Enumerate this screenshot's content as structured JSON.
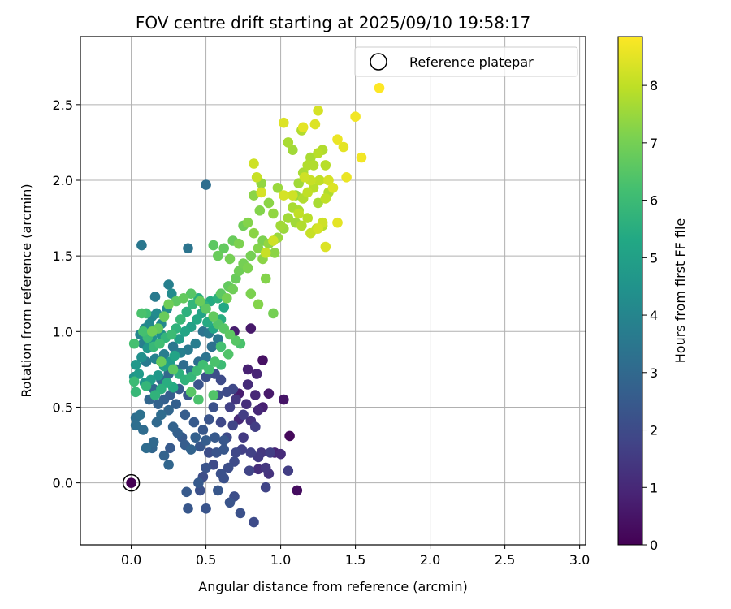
{
  "chart_data": {
    "type": "scatter",
    "title": "FOV centre drift starting at 2025/09/10 19:58:17",
    "xlabel": "Angular distance from reference (arcmin)",
    "ylabel": "Rotation from reference (arcmin)",
    "xlim": [
      -0.34,
      3.04
    ],
    "ylim": [
      -0.41,
      2.95
    ],
    "xticks": [
      0.0,
      0.5,
      1.0,
      1.5,
      2.0,
      2.5,
      3.0
    ],
    "xtick_labels": [
      "0.0",
      "0.5",
      "1.0",
      "1.5",
      "2.0",
      "2.5",
      "3.0"
    ],
    "yticks": [
      0.0,
      0.5,
      1.0,
      1.5,
      2.0,
      2.5
    ],
    "ytick_labels": [
      "0.0",
      "0.5",
      "1.0",
      "1.5",
      "2.0",
      "2.5"
    ],
    "grid": true,
    "colormap": "viridis",
    "colorbar": {
      "label": "Hours from first FF file",
      "range": [
        0,
        8.85
      ],
      "ticks": [
        0,
        1,
        2,
        3,
        4,
        5,
        6,
        7,
        8
      ],
      "tick_labels": [
        "0",
        "1",
        "2",
        "3",
        "4",
        "5",
        "6",
        "7",
        "8"
      ]
    },
    "legend": {
      "placement": "top-right",
      "entries": [
        {
          "label": "Reference platepar",
          "marker": "open-circle"
        }
      ]
    },
    "reference_point": {
      "x": 0.0,
      "y": 0.0,
      "hours": 0.0
    },
    "points": [
      [
        1.06,
        0.31,
        0.2
      ],
      [
        1.11,
        -0.05,
        0.3
      ],
      [
        0.88,
        0.81,
        0.4
      ],
      [
        1.02,
        0.55,
        0.5
      ],
      [
        0.92,
        0.59,
        0.6
      ],
      [
        0.72,
        0.59,
        0.7
      ],
      [
        0.8,
        1.02,
        0.6
      ],
      [
        0.69,
        1.0,
        0.7
      ],
      [
        0.88,
        0.5,
        0.8
      ],
      [
        0.84,
        0.72,
        0.9
      ],
      [
        0.78,
        0.75,
        0.8
      ],
      [
        0.85,
        0.48,
        1.0
      ],
      [
        0.96,
        0.2,
        0.9
      ],
      [
        1.0,
        0.19,
        1.1
      ],
      [
        0.78,
        0.65,
        1.1
      ],
      [
        0.83,
        0.58,
        1.0
      ],
      [
        0.77,
        0.52,
        1.2
      ],
      [
        0.72,
        0.42,
        1.0
      ],
      [
        0.8,
        0.41,
        1.3
      ],
      [
        0.92,
        0.06,
        1.3
      ],
      [
        0.85,
        0.09,
        1.2
      ],
      [
        0.9,
        0.1,
        1.4
      ],
      [
        0.87,
        0.2,
        1.4
      ],
      [
        0.93,
        0.2,
        1.6
      ],
      [
        0.85,
        0.17,
        1.5
      ],
      [
        0.8,
        0.2,
        1.7
      ],
      [
        0.79,
        0.08,
        1.8
      ],
      [
        1.05,
        0.08,
        1.6
      ],
      [
        0.9,
        -0.03,
        1.8
      ],
      [
        0.83,
        0.37,
        1.6
      ],
      [
        0.75,
        0.3,
        1.5
      ],
      [
        0.74,
        0.22,
        1.7
      ],
      [
        0.75,
        0.45,
        1.6
      ],
      [
        0.7,
        0.55,
        1.4
      ],
      [
        0.66,
        0.5,
        1.7
      ],
      [
        0.6,
        0.4,
        1.9
      ],
      [
        0.68,
        0.38,
        1.8
      ],
      [
        0.64,
        0.3,
        2.0
      ],
      [
        0.7,
        0.2,
        1.9
      ],
      [
        0.69,
        0.14,
        2.0
      ],
      [
        0.65,
        0.1,
        2.1
      ],
      [
        0.6,
        0.06,
        2.2
      ],
      [
        0.55,
        0.12,
        2.0
      ],
      [
        0.52,
        0.2,
        2.1
      ],
      [
        0.5,
        0.1,
        2.3
      ],
      [
        0.48,
        0.04,
        2.1
      ],
      [
        0.46,
        -0.05,
        2.2
      ],
      [
        0.5,
        -0.17,
        2.3
      ],
      [
        0.38,
        -0.17,
        2.4
      ],
      [
        0.37,
        -0.06,
        2.5
      ],
      [
        0.45,
        0.0,
        2.5
      ],
      [
        0.58,
        -0.05,
        2.4
      ],
      [
        0.66,
        -0.13,
        2.3
      ],
      [
        0.69,
        -0.09,
        2.1
      ],
      [
        0.73,
        -0.2,
        2.2
      ],
      [
        0.82,
        -0.26,
        2.0
      ],
      [
        0.62,
        0.03,
        2.2
      ],
      [
        0.57,
        0.2,
        2.3
      ],
      [
        0.62,
        0.22,
        2.4
      ],
      [
        0.62,
        0.28,
        2.4
      ],
      [
        0.56,
        0.3,
        2.5
      ],
      [
        0.5,
        0.28,
        2.6
      ],
      [
        0.46,
        0.24,
        2.4
      ],
      [
        0.43,
        0.3,
        2.7
      ],
      [
        0.4,
        0.22,
        2.8
      ],
      [
        0.36,
        0.25,
        2.6
      ],
      [
        0.34,
        0.3,
        2.5
      ],
      [
        0.31,
        0.33,
        2.7
      ],
      [
        0.28,
        0.37,
        2.8
      ],
      [
        0.26,
        0.23,
        2.5
      ],
      [
        0.22,
        0.18,
        2.8
      ],
      [
        0.25,
        0.12,
        2.9
      ],
      [
        0.15,
        0.27,
        3.0
      ],
      [
        0.14,
        0.23,
        2.9
      ],
      [
        0.1,
        0.23,
        3.1
      ],
      [
        0.03,
        0.38,
        3.2
      ],
      [
        0.08,
        0.35,
        3.1
      ],
      [
        0.06,
        0.45,
        3.3
      ],
      [
        0.03,
        0.43,
        3.2
      ],
      [
        0.17,
        0.4,
        3.0
      ],
      [
        0.2,
        0.45,
        3.1
      ],
      [
        0.25,
        0.48,
        2.9
      ],
      [
        0.3,
        0.52,
        2.7
      ],
      [
        0.36,
        0.45,
        2.6
      ],
      [
        0.42,
        0.4,
        2.5
      ],
      [
        0.48,
        0.35,
        2.4
      ],
      [
        0.52,
        0.42,
        2.3
      ],
      [
        0.55,
        0.5,
        2.2
      ],
      [
        0.58,
        0.58,
        2.1
      ],
      [
        0.64,
        0.6,
        2.0
      ],
      [
        0.68,
        0.62,
        1.9
      ],
      [
        0.6,
        0.68,
        2.0
      ],
      [
        0.56,
        0.72,
        2.1
      ],
      [
        0.5,
        0.7,
        2.2
      ],
      [
        0.45,
        0.65,
        2.3
      ],
      [
        0.38,
        0.58,
        2.4
      ],
      [
        0.32,
        0.62,
        2.5
      ],
      [
        0.26,
        0.58,
        2.6
      ],
      [
        0.22,
        0.55,
        2.7
      ],
      [
        0.18,
        0.52,
        2.8
      ],
      [
        0.12,
        0.55,
        2.9
      ],
      [
        0.15,
        0.62,
        3.0
      ],
      [
        0.2,
        0.68,
        3.1
      ],
      [
        0.25,
        0.72,
        3.0
      ],
      [
        0.3,
        0.75,
        3.2
      ],
      [
        0.35,
        0.78,
        3.1
      ],
      [
        0.4,
        0.74,
        3.3
      ],
      [
        0.45,
        0.8,
        3.2
      ],
      [
        0.5,
        0.83,
        3.4
      ],
      [
        0.54,
        0.9,
        3.3
      ],
      [
        0.58,
        0.95,
        3.5
      ],
      [
        0.52,
        0.99,
        3.6
      ],
      [
        0.48,
        1.0,
        3.4
      ],
      [
        0.43,
        0.92,
        3.7
      ],
      [
        0.38,
        0.88,
        3.6
      ],
      [
        0.33,
        0.86,
        3.8
      ],
      [
        0.28,
        0.9,
        3.5
      ],
      [
        0.22,
        0.85,
        3.7
      ],
      [
        0.16,
        0.82,
        3.9
      ],
      [
        0.1,
        0.8,
        3.6
      ],
      [
        0.08,
        0.92,
        3.8
      ],
      [
        0.06,
        0.98,
        4.0
      ],
      [
        0.09,
        1.02,
        3.9
      ],
      [
        0.12,
        1.05,
        4.1
      ],
      [
        0.14,
        1.1,
        4.0
      ],
      [
        0.17,
        1.12,
        4.2
      ],
      [
        0.2,
        1.05,
        4.1
      ],
      [
        0.24,
        1.15,
        4.3
      ],
      [
        0.27,
        1.25,
        4.2
      ],
      [
        0.25,
        1.31,
        3.8
      ],
      [
        0.16,
        1.23,
        3.6
      ],
      [
        0.07,
        1.57,
        3.5
      ],
      [
        0.38,
        1.55,
        3.4
      ],
      [
        0.5,
        1.97,
        3.2
      ],
      [
        0.2,
        0.98,
        4.4
      ],
      [
        0.14,
        0.95,
        4.5
      ],
      [
        0.11,
        0.89,
        4.6
      ],
      [
        0.07,
        0.83,
        4.4
      ],
      [
        0.03,
        0.78,
        4.7
      ],
      [
        0.02,
        0.7,
        4.5
      ],
      [
        0.05,
        0.72,
        4.8
      ],
      [
        0.09,
        0.66,
        4.6
      ],
      [
        0.13,
        0.68,
        4.9
      ],
      [
        0.18,
        0.71,
        4.7
      ],
      [
        0.22,
        0.77,
        5.0
      ],
      [
        0.26,
        0.8,
        4.8
      ],
      [
        0.29,
        0.84,
        5.1
      ],
      [
        0.32,
        0.95,
        4.9
      ],
      [
        0.36,
        1.0,
        5.2
      ],
      [
        0.4,
        1.03,
        5.0
      ],
      [
        0.44,
        1.08,
        5.3
      ],
      [
        0.47,
        1.12,
        5.1
      ],
      [
        0.51,
        1.06,
        5.4
      ],
      [
        0.55,
        1.02,
        5.2
      ],
      [
        0.6,
        1.08,
        5.5
      ],
      [
        0.62,
        1.16,
        5.3
      ],
      [
        0.58,
        1.22,
        5.6
      ],
      [
        0.53,
        1.2,
        5.4
      ],
      [
        0.49,
        1.17,
        5.7
      ],
      [
        0.45,
        1.22,
        5.5
      ],
      [
        0.41,
        1.18,
        5.8
      ],
      [
        0.37,
        1.13,
        5.6
      ],
      [
        0.33,
        1.08,
        5.9
      ],
      [
        0.3,
        1.02,
        5.7
      ],
      [
        0.27,
        0.98,
        6.0
      ],
      [
        0.23,
        0.96,
        5.8
      ],
      [
        0.19,
        0.92,
        6.1
      ],
      [
        0.15,
        0.9,
        5.9
      ],
      [
        0.11,
        0.96,
        6.0
      ],
      [
        0.08,
        1.0,
        6.2
      ],
      [
        0.1,
        1.12,
        6.1
      ],
      [
        0.07,
        1.12,
        6.3
      ],
      [
        0.02,
        0.92,
        6.2
      ],
      [
        0.02,
        0.67,
        6.0
      ],
      [
        0.03,
        0.6,
        5.9
      ],
      [
        0.1,
        0.64,
        5.8
      ],
      [
        0.16,
        0.58,
        5.7
      ],
      [
        0.2,
        0.62,
        5.6
      ],
      [
        0.24,
        0.66,
        5.5
      ],
      [
        0.28,
        0.63,
        5.4
      ],
      [
        0.32,
        0.72,
        5.6
      ],
      [
        0.36,
        0.68,
        5.7
      ],
      [
        0.4,
        0.7,
        5.8
      ],
      [
        0.44,
        0.74,
        6.0
      ],
      [
        0.48,
        0.78,
        6.1
      ],
      [
        0.52,
        0.75,
        6.2
      ],
      [
        0.56,
        0.8,
        6.3
      ],
      [
        0.6,
        0.78,
        6.0
      ],
      [
        0.65,
        0.85,
        6.4
      ],
      [
        0.7,
        0.94,
        6.5
      ],
      [
        0.73,
        0.92,
        6.3
      ],
      [
        0.6,
        0.9,
        6.2
      ],
      [
        0.66,
        0.98,
        6.6
      ],
      [
        0.62,
        1.02,
        6.5
      ],
      [
        0.58,
        1.05,
        6.4
      ],
      [
        0.55,
        1.1,
        6.7
      ],
      [
        0.5,
        1.15,
        6.6
      ],
      [
        0.46,
        1.2,
        6.8
      ],
      [
        0.4,
        1.25,
        6.5
      ],
      [
        0.35,
        1.22,
        6.7
      ],
      [
        0.3,
        1.2,
        6.6
      ],
      [
        0.25,
        1.18,
        6.9
      ],
      [
        0.22,
        1.1,
        6.8
      ],
      [
        0.18,
        1.02,
        6.7
      ],
      [
        0.14,
        1.0,
        6.9
      ],
      [
        0.2,
        0.8,
        6.8
      ],
      [
        0.28,
        0.75,
        6.6
      ],
      [
        0.4,
        0.6,
        6.5
      ],
      [
        0.45,
        0.55,
        6.3
      ],
      [
        0.55,
        0.58,
        6.4
      ],
      [
        0.6,
        1.25,
        6.6
      ],
      [
        0.65,
        1.3,
        6.7
      ],
      [
        0.7,
        1.35,
        6.8
      ],
      [
        0.68,
        1.28,
        6.9
      ],
      [
        0.64,
        1.22,
        7.0
      ],
      [
        0.72,
        1.4,
        6.9
      ],
      [
        0.75,
        1.45,
        7.0
      ],
      [
        0.78,
        1.42,
        7.1
      ],
      [
        0.8,
        1.5,
        7.0
      ],
      [
        0.85,
        1.55,
        7.2
      ],
      [
        0.88,
        1.6,
        7.1
      ],
      [
        0.82,
        1.65,
        7.3
      ],
      [
        0.8,
        1.25,
        7.1
      ],
      [
        0.85,
        1.18,
        7.2
      ],
      [
        0.95,
        1.12,
        7.0
      ],
      [
        0.9,
        1.35,
        7.2
      ],
      [
        0.88,
        1.48,
        7.3
      ],
      [
        0.92,
        1.58,
        7.4
      ],
      [
        0.96,
        1.52,
        7.3
      ],
      [
        0.98,
        1.62,
        7.5
      ],
      [
        0.78,
        1.72,
        7.2
      ],
      [
        0.75,
        1.7,
        6.9
      ],
      [
        0.68,
        1.6,
        6.8
      ],
      [
        0.62,
        1.55,
        6.7
      ],
      [
        0.55,
        1.57,
        6.6
      ],
      [
        0.58,
        1.5,
        6.8
      ],
      [
        0.66,
        1.48,
        7.0
      ],
      [
        0.72,
        1.58,
        7.1
      ],
      [
        0.86,
        1.8,
        7.2
      ],
      [
        0.82,
        1.9,
        7.3
      ],
      [
        0.87,
        1.98,
        7.4
      ],
      [
        0.92,
        1.85,
        7.3
      ],
      [
        0.95,
        1.78,
        7.4
      ],
      [
        0.98,
        1.95,
        7.5
      ],
      [
        1.0,
        1.7,
        7.6
      ],
      [
        1.02,
        1.68,
        7.5
      ],
      [
        1.05,
        1.75,
        7.6
      ],
      [
        1.08,
        1.82,
        7.7
      ],
      [
        1.1,
        1.9,
        7.5
      ],
      [
        1.12,
        1.98,
        7.6
      ],
      [
        1.15,
        2.05,
        7.7
      ],
      [
        1.18,
        2.1,
        7.8
      ],
      [
        1.2,
        2.15,
        7.7
      ],
      [
        1.22,
        2.1,
        7.8
      ],
      [
        1.25,
        2.18,
        7.9
      ],
      [
        1.28,
        2.2,
        7.8
      ],
      [
        1.3,
        2.1,
        7.9
      ],
      [
        1.26,
        2.0,
        8.0
      ],
      [
        1.22,
        1.95,
        7.9
      ],
      [
        1.18,
        1.92,
        8.0
      ],
      [
        1.15,
        1.88,
        7.8
      ],
      [
        1.12,
        1.8,
        7.7
      ],
      [
        1.1,
        1.72,
        7.6
      ],
      [
        1.14,
        1.7,
        7.8
      ],
      [
        1.18,
        1.75,
        7.9
      ],
      [
        1.24,
        1.68,
        8.0
      ],
      [
        1.28,
        1.7,
        7.9
      ],
      [
        1.3,
        1.88,
        8.0
      ],
      [
        1.32,
        1.92,
        7.8
      ],
      [
        1.25,
        1.85,
        7.7
      ],
      [
        1.08,
        2.2,
        7.6
      ],
      [
        1.05,
        2.25,
        7.7
      ],
      [
        1.14,
        2.33,
        7.8
      ],
      [
        1.2,
        2.0,
        8.1
      ],
      [
        1.16,
        2.02,
        8.2
      ],
      [
        1.32,
        2.0,
        8.3
      ],
      [
        1.35,
        1.95,
        8.4
      ],
      [
        1.28,
        1.72,
        8.2
      ],
      [
        1.25,
        1.68,
        8.3
      ],
      [
        1.3,
        1.56,
        8.4
      ],
      [
        1.2,
        1.65,
        8.1
      ],
      [
        1.12,
        1.78,
        8.0
      ],
      [
        1.08,
        1.9,
        8.2
      ],
      [
        1.02,
        1.9,
        8.3
      ],
      [
        0.95,
        1.6,
        8.2
      ],
      [
        0.9,
        1.52,
        8.1
      ],
      [
        0.87,
        1.92,
        8.3
      ],
      [
        0.82,
        2.11,
        8.2
      ],
      [
        0.84,
        2.02,
        8.1
      ],
      [
        1.02,
        2.38,
        8.4
      ],
      [
        1.15,
        2.35,
        8.5
      ],
      [
        1.23,
        2.37,
        8.4
      ],
      [
        1.25,
        2.46,
        8.3
      ],
      [
        1.38,
        2.27,
        8.6
      ],
      [
        1.42,
        2.22,
        8.5
      ],
      [
        1.44,
        2.02,
        8.6
      ],
      [
        1.5,
        2.42,
        8.7
      ],
      [
        1.54,
        2.15,
        8.7
      ],
      [
        1.66,
        2.61,
        8.85
      ],
      [
        1.38,
        1.72,
        8.5
      ]
    ]
  }
}
